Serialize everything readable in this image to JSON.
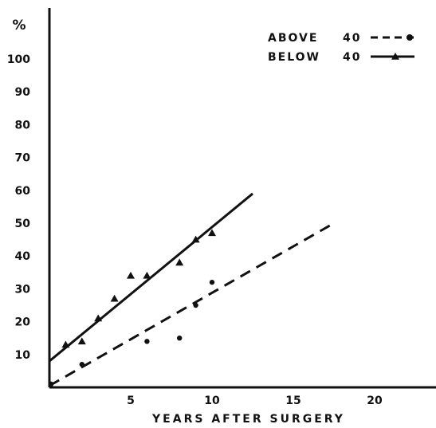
{
  "chart_data": {
    "type": "scatter",
    "title": "",
    "xlabel": "YEARS AFTER SURGERY",
    "ylabel": "%",
    "xlim": [
      0,
      24
    ],
    "ylim": [
      0,
      110
    ],
    "x_ticks": [
      5,
      10,
      15,
      20
    ],
    "y_ticks": [
      10,
      20,
      30,
      40,
      50,
      60,
      70,
      80,
      90,
      100
    ],
    "grid": false,
    "legend_position": "top-right",
    "colors": {
      "ink": "#111111",
      "background": "#ffffff"
    },
    "series": [
      {
        "name": "ABOVE",
        "legend_value": "40",
        "marker": "circle",
        "line_style": "dashed",
        "points": [
          [
            0.1,
            1
          ],
          [
            2,
            7
          ],
          [
            6,
            14
          ],
          [
            8,
            15
          ],
          [
            9,
            25
          ],
          [
            10,
            32
          ]
        ],
        "fit_line": [
          [
            0,
            0.5
          ],
          [
            17.5,
            50
          ]
        ]
      },
      {
        "name": "BELOW",
        "legend_value": "40",
        "marker": "triangle",
        "line_style": "solid",
        "points": [
          [
            1,
            13
          ],
          [
            2,
            14
          ],
          [
            3,
            21
          ],
          [
            4,
            27
          ],
          [
            5,
            34
          ],
          [
            6,
            34
          ],
          [
            8,
            38
          ],
          [
            9,
            45
          ],
          [
            10,
            47
          ]
        ],
        "fit_line": [
          [
            0,
            8
          ],
          [
            12.5,
            59
          ]
        ]
      }
    ]
  }
}
